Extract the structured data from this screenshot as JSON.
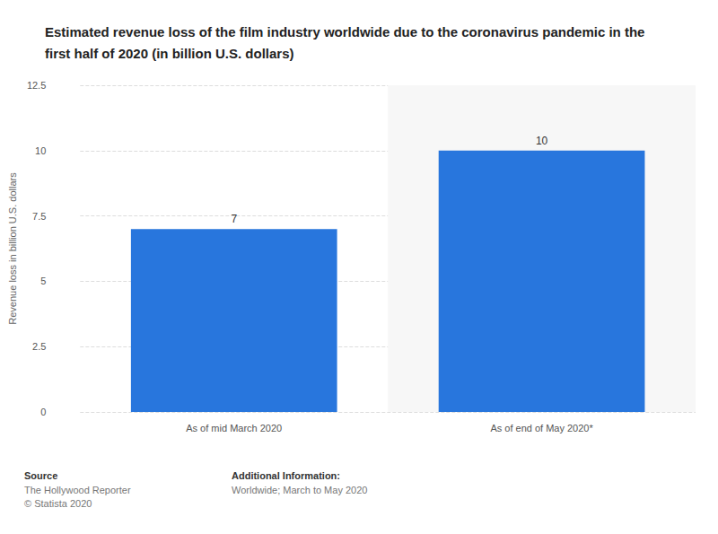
{
  "chart_data": {
    "type": "bar",
    "title": "Estimated revenue loss of the film industry worldwide due to the coronavirus pandemic in the first half of 2020 (in billion U.S. dollars)",
    "y_label": "Revenue loss in billion U.S. dollars",
    "categories": [
      "As of mid March 2020",
      "As of end of May 2020*"
    ],
    "values": [
      7,
      10
    ],
    "color": "#2876dd",
    "ylim": [
      0,
      12.5
    ],
    "yticks": [
      0,
      2.5,
      5,
      7.5,
      10,
      12.5
    ],
    "grid": true,
    "data_labels": true,
    "source": {
      "label": "Source",
      "lines": [
        "The Hollywood Reporter",
        "© Statista 2020"
      ]
    },
    "additional_information": {
      "label": "Additional Information:",
      "lines": [
        "Worldwide; March to May 2020"
      ]
    }
  }
}
